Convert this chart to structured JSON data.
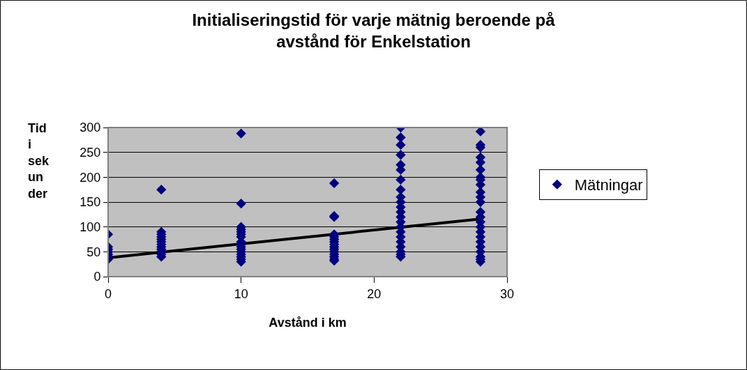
{
  "chart_data": {
    "type": "scatter",
    "title": "Initialiseringstid för varje mätnig beroende på avstånd för Enkelstation",
    "xlabel": "Avstånd i km",
    "ylabel": "Tid i sekunder",
    "series": [
      {
        "name": "Mätningar",
        "color": "#000080",
        "marker": "diamond",
        "x": [
          0,
          0,
          0,
          0,
          0,
          0,
          0,
          4,
          4,
          4,
          4,
          4,
          4,
          4,
          4,
          4,
          4,
          4,
          4,
          10,
          10,
          10,
          10,
          10,
          10,
          10,
          10,
          10,
          10,
          10,
          10,
          10,
          10,
          10,
          10,
          17,
          17,
          17,
          17,
          17,
          17,
          17,
          17,
          17,
          17,
          17,
          17,
          17,
          17,
          17,
          22,
          22,
          22,
          22,
          22,
          22,
          22,
          22,
          22,
          22,
          22,
          22,
          22,
          22,
          22,
          22,
          22,
          22,
          22,
          22,
          22,
          22,
          28,
          28,
          28,
          28,
          28,
          28,
          28,
          28,
          28,
          28,
          28,
          28,
          28,
          28,
          28,
          28,
          28,
          28,
          28,
          28,
          28,
          28,
          28,
          28
        ],
        "values": [
          85,
          60,
          55,
          50,
          45,
          40,
          35,
          175,
          90,
          85,
          80,
          75,
          70,
          65,
          60,
          55,
          50,
          45,
          40,
          288,
          147,
          100,
          95,
          90,
          85,
          80,
          70,
          65,
          60,
          55,
          50,
          45,
          40,
          35,
          30,
          188,
          122,
          120,
          85,
          80,
          75,
          70,
          65,
          60,
          55,
          50,
          45,
          40,
          35,
          32,
          300,
          280,
          265,
          245,
          225,
          215,
          195,
          175,
          160,
          150,
          140,
          130,
          120,
          110,
          100,
          90,
          80,
          70,
          60,
          50,
          45,
          40,
          292,
          265,
          260,
          240,
          230,
          215,
          200,
          195,
          185,
          170,
          160,
          150,
          130,
          120,
          110,
          100,
          90,
          80,
          70,
          60,
          50,
          40,
          35,
          30
        ]
      },
      {
        "type": "line",
        "color": "#000000",
        "x": [
          0,
          28
        ],
        "values": [
          38,
          116
        ]
      }
    ],
    "xlim": [
      0,
      30
    ],
    "xticks": [
      0,
      10,
      20,
      30
    ],
    "ylim": [
      0,
      300
    ],
    "yticks": [
      0,
      50,
      100,
      150,
      200,
      250,
      300
    ],
    "grid": "y",
    "legend": "right"
  }
}
